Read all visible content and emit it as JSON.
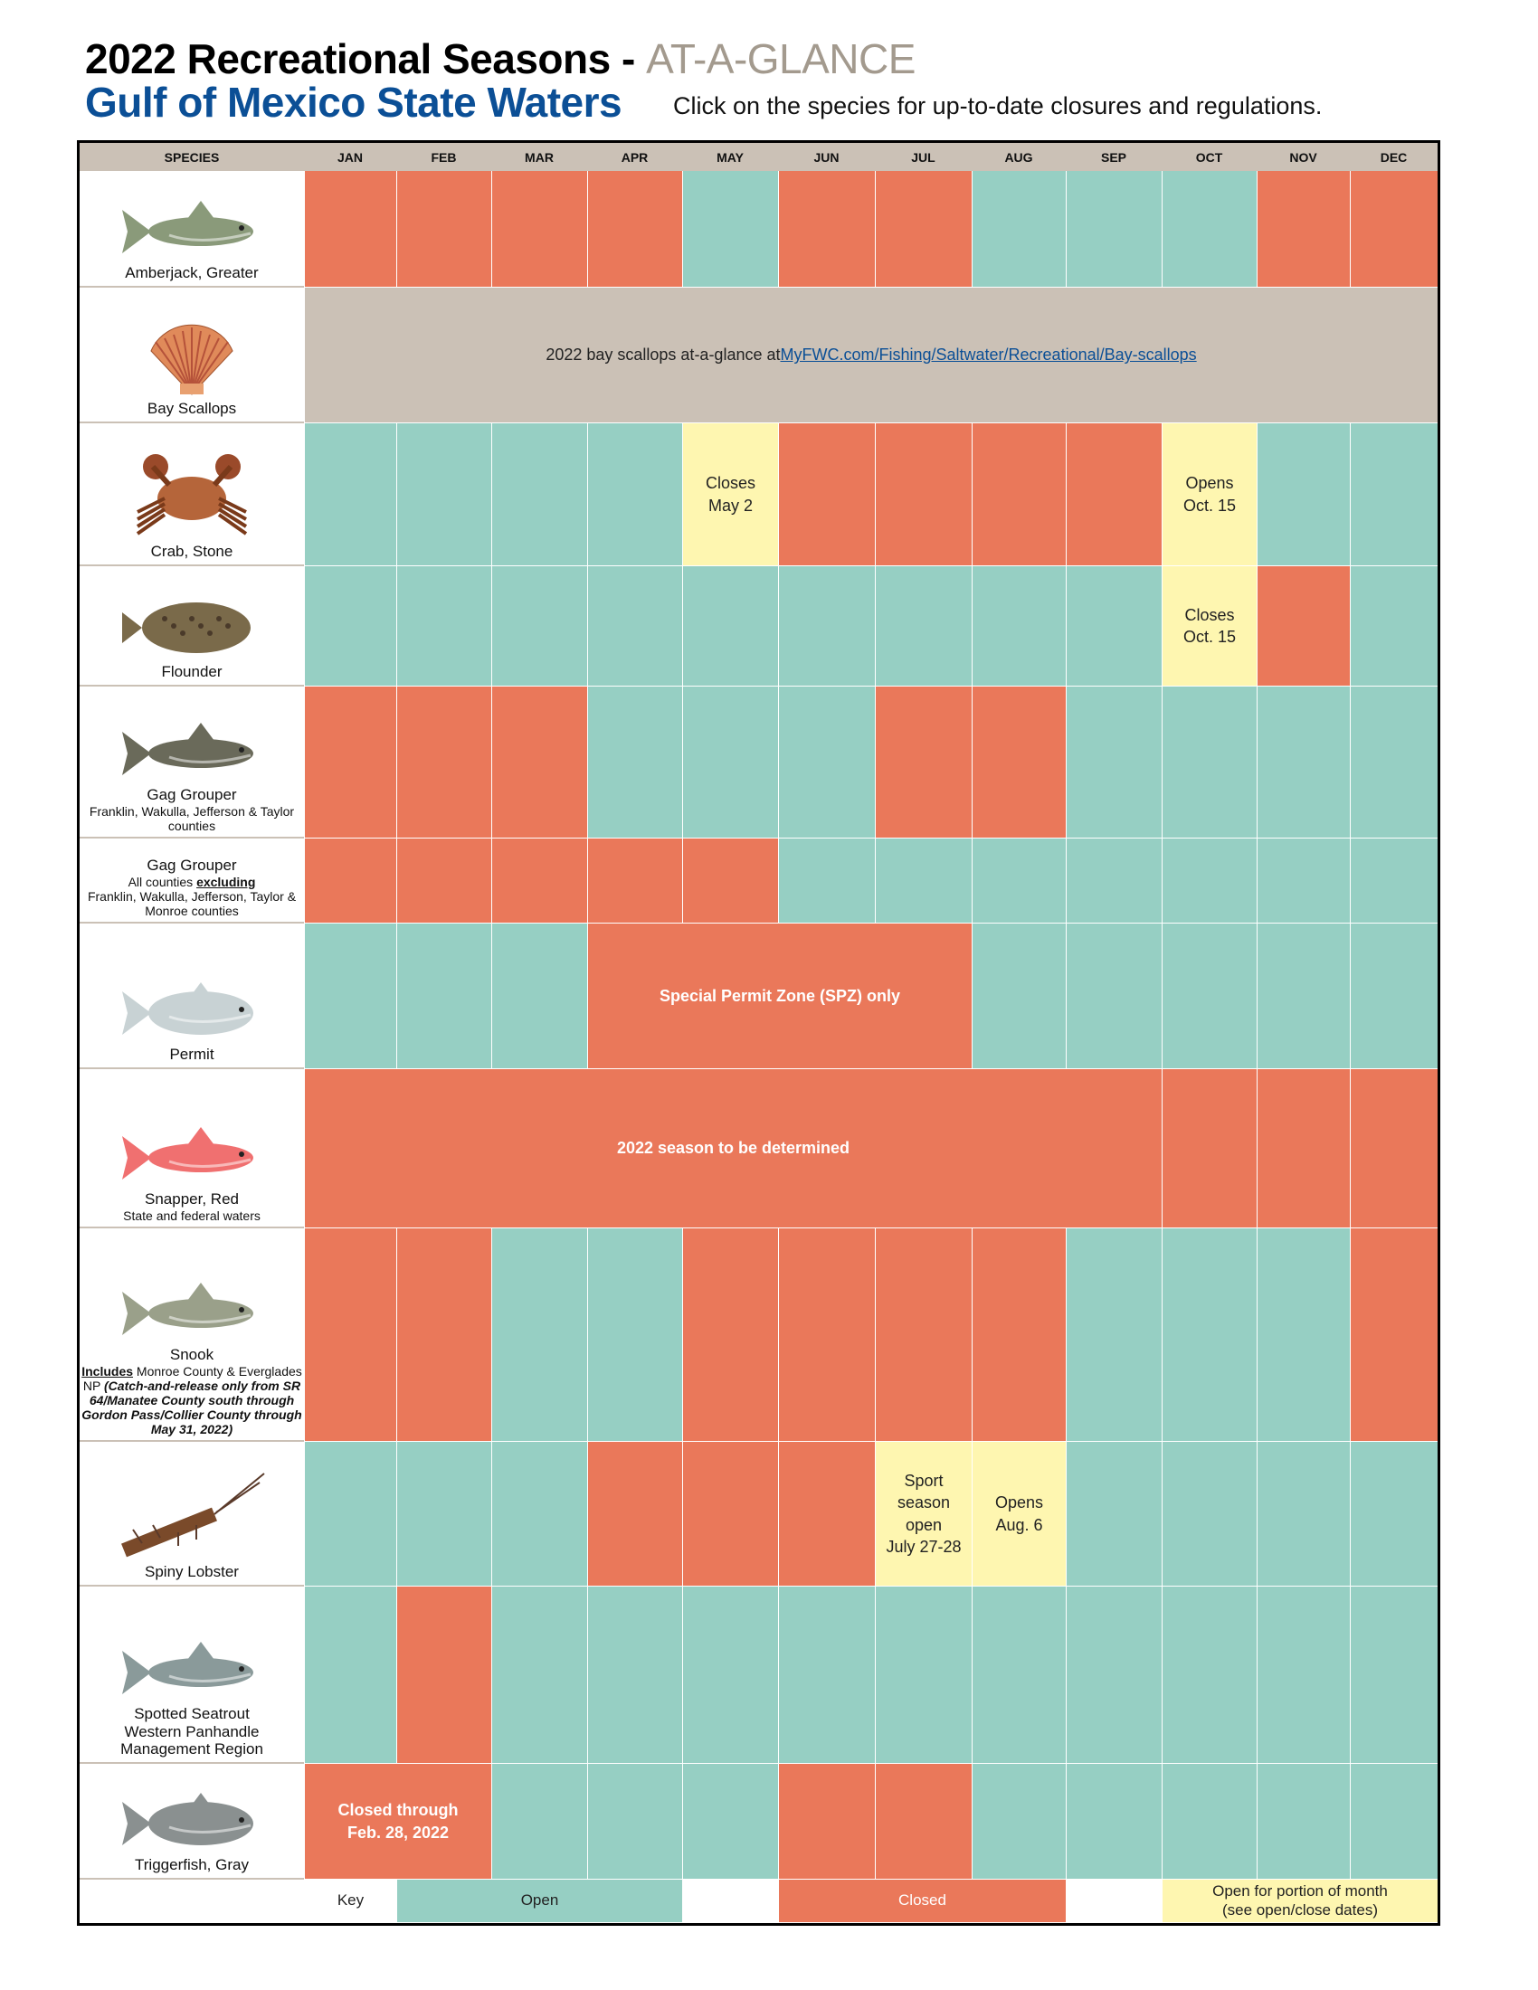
{
  "header": {
    "title": "2022 Recreational Seasons - ",
    "title_accent": "AT-A-GLANCE",
    "subtitle": "Gulf of Mexico State Waters",
    "instruction": "Click on the species for up-to-date closures and regulations."
  },
  "colors": {
    "closed": "#EA785A",
    "open": "#96CFC3",
    "partial": "#FEF6B0",
    "info": "#CBC1B6",
    "brand_blue": "#0B4F96"
  },
  "columns": [
    "SPECIES",
    "JAN",
    "FEB",
    "MAR",
    "APR",
    "MAY",
    "JUN",
    "JUL",
    "AUG",
    "SEP",
    "OCT",
    "NOV",
    "DEC"
  ],
  "rows": [
    {
      "name": "Amberjack, Greater",
      "icon": "amberjack-fish-icon",
      "fish": "#8a9a7a",
      "cells": [
        {
          "s": "closed"
        },
        {
          "s": "closed"
        },
        {
          "s": "closed"
        },
        {
          "s": "closed"
        },
        {
          "s": "open"
        },
        {
          "s": "closed"
        },
        {
          "s": "closed"
        },
        {
          "s": "open"
        },
        {
          "s": "open"
        },
        {
          "s": "open"
        },
        {
          "s": "closed"
        },
        {
          "s": "closed"
        }
      ]
    },
    {
      "name": "Bay Scallops",
      "icon": "scallop-shell-icon",
      "fish": "#e08a5a",
      "cells": [
        {
          "s": "tan",
          "span": 12,
          "text": "2022 bay scallops at-a-glance at ",
          "link": "MyFWC.com/Fishing/Saltwater/Recreational/Bay-scallops"
        }
      ]
    },
    {
      "name": "Crab, Stone",
      "icon": "stone-crab-icon",
      "fish": "#b5653a",
      "cells": [
        {
          "s": "open"
        },
        {
          "s": "open"
        },
        {
          "s": "open"
        },
        {
          "s": "open"
        },
        {
          "s": "partial",
          "text": "Closes\nMay 2"
        },
        {
          "s": "closed"
        },
        {
          "s": "closed"
        },
        {
          "s": "closed"
        },
        {
          "s": "closed"
        },
        {
          "s": "partial",
          "text": "Opens\nOct. 15"
        },
        {
          "s": "open"
        },
        {
          "s": "open"
        }
      ]
    },
    {
      "name": "Flounder",
      "icon": "flounder-fish-icon",
      "fish": "#7a6a4a",
      "cells": [
        {
          "s": "open"
        },
        {
          "s": "open"
        },
        {
          "s": "open"
        },
        {
          "s": "open"
        },
        {
          "s": "open"
        },
        {
          "s": "open"
        },
        {
          "s": "open"
        },
        {
          "s": "open"
        },
        {
          "s": "open"
        },
        {
          "s": "partial",
          "text": "Closes\nOct. 15"
        },
        {
          "s": "closed"
        },
        {
          "s": "open"
        }
      ]
    },
    {
      "name": "Gag Grouper",
      "sub": "Franklin, Wakulla, Jefferson & Taylor counties",
      "icon": "gag-grouper-fish-icon",
      "fish": "#6a6a5a",
      "cells": [
        {
          "s": "closed"
        },
        {
          "s": "closed"
        },
        {
          "s": "closed"
        },
        {
          "s": "open"
        },
        {
          "s": "open"
        },
        {
          "s": "open"
        },
        {
          "s": "closed"
        },
        {
          "s": "closed"
        },
        {
          "s": "open"
        },
        {
          "s": "open"
        },
        {
          "s": "open"
        },
        {
          "s": "open"
        }
      ]
    },
    {
      "name": "Gag Grouper",
      "sub_pre": "All counties ",
      "sub_em": "excluding",
      "sub": "Franklin, Wakulla, Jefferson, Taylor & Monroe counties",
      "cells": [
        {
          "s": "closed"
        },
        {
          "s": "closed"
        },
        {
          "s": "closed"
        },
        {
          "s": "closed"
        },
        {
          "s": "closed"
        },
        {
          "s": "open"
        },
        {
          "s": "open"
        },
        {
          "s": "open"
        },
        {
          "s": "open"
        },
        {
          "s": "open"
        },
        {
          "s": "open"
        },
        {
          "s": "open"
        }
      ]
    },
    {
      "name": "Permit",
      "icon": "permit-fish-icon",
      "fish": "#c8d2d4",
      "cells": [
        {
          "s": "open"
        },
        {
          "s": "open"
        },
        {
          "s": "open"
        },
        {
          "s": "closed",
          "span": 4,
          "text": "Special Permit Zone (SPZ) only",
          "bold": true
        },
        {
          "s": "open"
        },
        {
          "s": "open"
        },
        {
          "s": "open"
        },
        {
          "s": "open"
        },
        {
          "s": "open"
        }
      ]
    },
    {
      "name": "Snapper, Red",
      "sub": "State and federal waters",
      "icon": "red-snapper-fish-icon",
      "fish": "#f07070",
      "cells": [
        {
          "s": "closed",
          "span": 9,
          "text": "2022 season to be determined",
          "bold": true
        },
        {
          "s": "closed"
        },
        {
          "s": "closed"
        },
        {
          "s": "closed"
        }
      ]
    },
    {
      "name": "Snook",
      "sub_pre": "Includes",
      "sub": " Monroe County & Everglades NP ",
      "note": "(Catch-and-release only from SR 64/Manatee County south through Gordon Pass/Collier County through May 31, 2022)",
      "icon": "snook-fish-icon",
      "fish": "#9aa08a",
      "cells": [
        {
          "s": "closed"
        },
        {
          "s": "closed"
        },
        {
          "s": "open"
        },
        {
          "s": "open"
        },
        {
          "s": "closed"
        },
        {
          "s": "closed"
        },
        {
          "s": "closed"
        },
        {
          "s": "closed"
        },
        {
          "s": "open"
        },
        {
          "s": "open"
        },
        {
          "s": "open"
        },
        {
          "s": "closed"
        }
      ]
    },
    {
      "name": "Spiny Lobster",
      "icon": "spiny-lobster-icon",
      "fish": "#7a4a2a",
      "cells": [
        {
          "s": "open"
        },
        {
          "s": "open"
        },
        {
          "s": "open"
        },
        {
          "s": "closed"
        },
        {
          "s": "closed"
        },
        {
          "s": "closed"
        },
        {
          "s": "partial",
          "text": "Sport\nseason\nopen\nJuly 27-28"
        },
        {
          "s": "partial",
          "text": "Opens\nAug. 6"
        },
        {
          "s": "open"
        },
        {
          "s": "open"
        },
        {
          "s": "open"
        },
        {
          "s": "open"
        }
      ]
    },
    {
      "name": "Spotted Seatrout",
      "sub": "Western Panhandle\nManagement Region",
      "sub_large": true,
      "icon": "spotted-seatrout-fish-icon",
      "fish": "#8a9a9a",
      "cells": [
        {
          "s": "open"
        },
        {
          "s": "closed"
        },
        {
          "s": "open"
        },
        {
          "s": "open"
        },
        {
          "s": "open"
        },
        {
          "s": "open"
        },
        {
          "s": "open"
        },
        {
          "s": "open"
        },
        {
          "s": "open"
        },
        {
          "s": "open"
        },
        {
          "s": "open"
        },
        {
          "s": "open"
        }
      ]
    },
    {
      "name": "Triggerfish, Gray",
      "icon": "triggerfish-icon",
      "fish": "#8a9090",
      "cells": [
        {
          "s": "closed",
          "span": 2,
          "text": "Closed through\nFeb. 28, 2022",
          "bold": true
        },
        {
          "s": "open"
        },
        {
          "s": "open"
        },
        {
          "s": "open"
        },
        {
          "s": "closed"
        },
        {
          "s": "closed"
        },
        {
          "s": "open"
        },
        {
          "s": "open"
        },
        {
          "s": "open"
        },
        {
          "s": "open"
        },
        {
          "s": "open"
        }
      ]
    }
  ],
  "key": [
    {
      "s": "white",
      "span": 1,
      "text": "Key"
    },
    {
      "s": "open",
      "span": 3,
      "text": "Open"
    },
    {
      "s": "white",
      "span": 1,
      "text": ""
    },
    {
      "s": "closed",
      "span": 3,
      "text": "Closed"
    },
    {
      "s": "white",
      "span": 1,
      "text": ""
    },
    {
      "s": "partial",
      "span": 3,
      "text": "Open for portion of month\n(see open/close dates)"
    }
  ]
}
